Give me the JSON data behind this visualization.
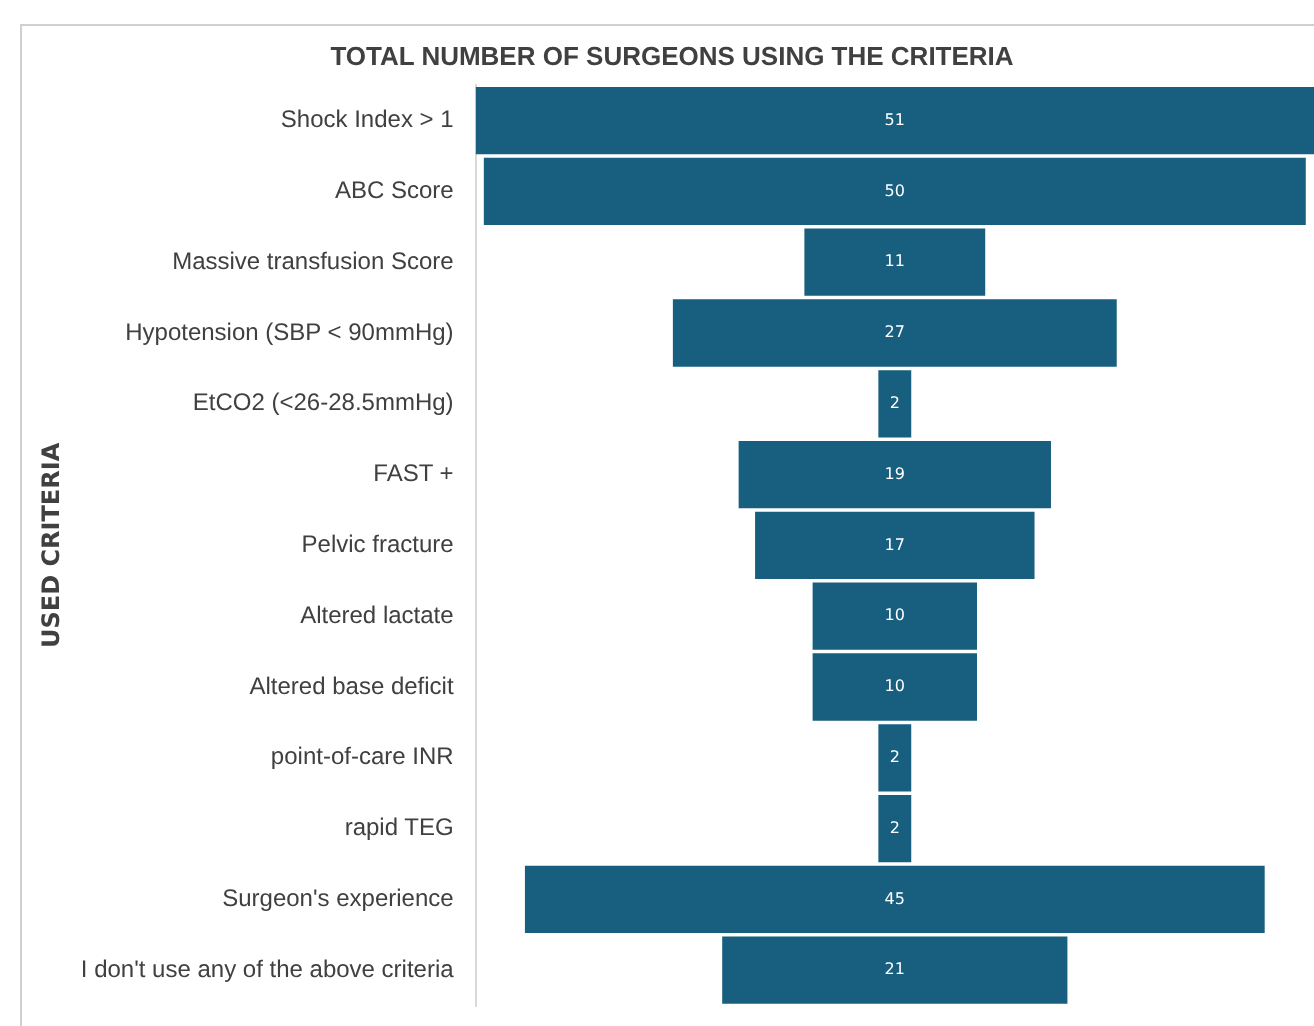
{
  "chart_data": {
    "type": "other",
    "title": "TOTAL NUMBER OF SURGEONS USING THE CRITERIA",
    "ylabel": "USED CRITERIA",
    "categories": [
      "Shock Index > 1",
      "ABC Score",
      "Massive transfusion Score",
      "Hypotension (SBP < 90mmHg)",
      "EtCO2 (<26-28.5mmHg)",
      "FAST +",
      "Pelvic fracture",
      "Altered lactate",
      "Altered base deficit",
      "point-of-care INR",
      "rapid TEG",
      "Surgeon's experience",
      "I don't use any of the above criteria"
    ],
    "values": [
      51,
      50,
      11,
      27,
      2,
      19,
      17,
      10,
      10,
      2,
      2,
      45,
      21
    ],
    "color": "#175e7f",
    "data_labels": true,
    "legend": false
  }
}
